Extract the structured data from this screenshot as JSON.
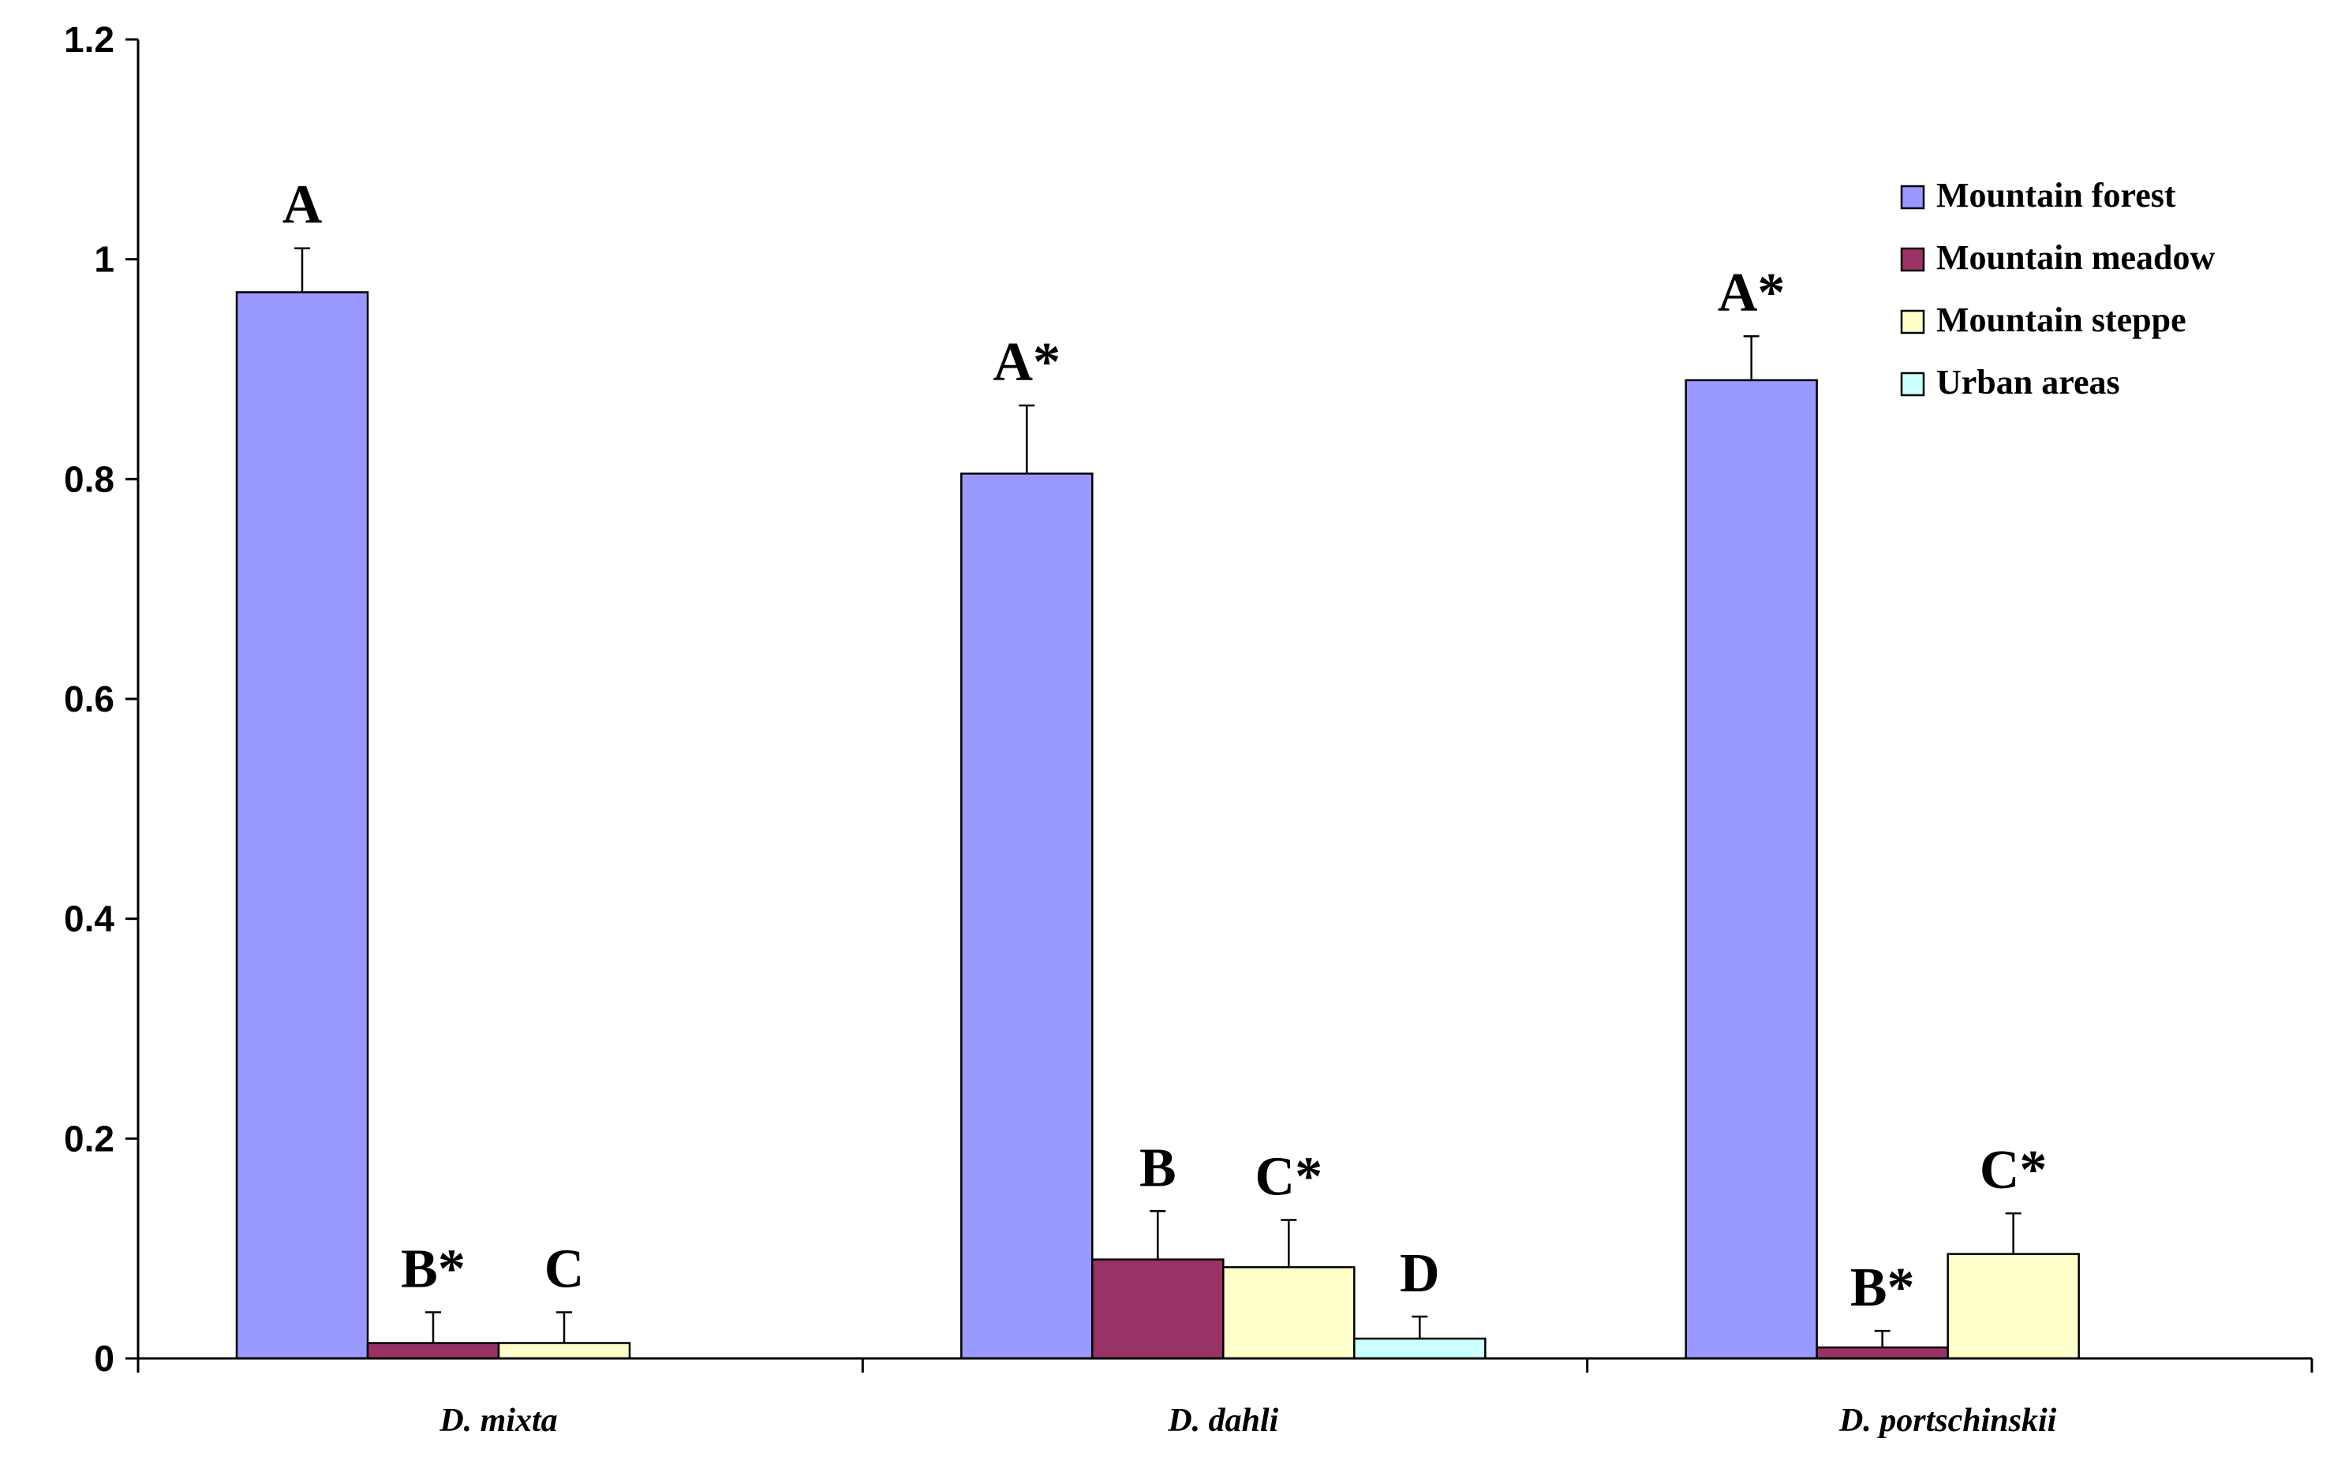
{
  "chart_data": {
    "type": "bar",
    "title": "",
    "xlabel": "",
    "ylabel": "",
    "ylim": [
      0,
      1.2
    ],
    "yticks": [
      0,
      0.2,
      0.4,
      0.6,
      0.8,
      1,
      1.2
    ],
    "ytick_labels": [
      "0",
      "0.2",
      "0.4",
      "0.6",
      "0.8",
      "1",
      "1.2"
    ],
    "grid": false,
    "legend_position": "top-right",
    "categories": [
      "D. mixta",
      "D. dahli",
      "D. portschinskii"
    ],
    "series": [
      {
        "name": "Mountain forest",
        "color": "#9999ff",
        "values": [
          0.97,
          0.805,
          0.89
        ],
        "errors": [
          0.04,
          0.062,
          0.04
        ],
        "labels": [
          "A",
          "A*",
          "A*"
        ]
      },
      {
        "name": "Mountain meadow",
        "color": "#993366",
        "values": [
          0.014,
          0.09,
          0.01
        ],
        "errors": [
          0.028,
          0.044,
          0.015
        ],
        "labels": [
          "B*",
          "B",
          "B*"
        ]
      },
      {
        "name": "Mountain steppe",
        "color": "#ffffcc",
        "values": [
          0.014,
          0.083,
          0.095
        ],
        "errors": [
          0.028,
          0.043,
          0.037
        ],
        "labels": [
          "C",
          "C*",
          "C*"
        ]
      },
      {
        "name": "Urban areas",
        "color": "#ccffff",
        "values": [
          null,
          0.018,
          null
        ],
        "errors": [
          null,
          0.02,
          null
        ],
        "labels": [
          "",
          "D",
          ""
        ]
      }
    ]
  }
}
